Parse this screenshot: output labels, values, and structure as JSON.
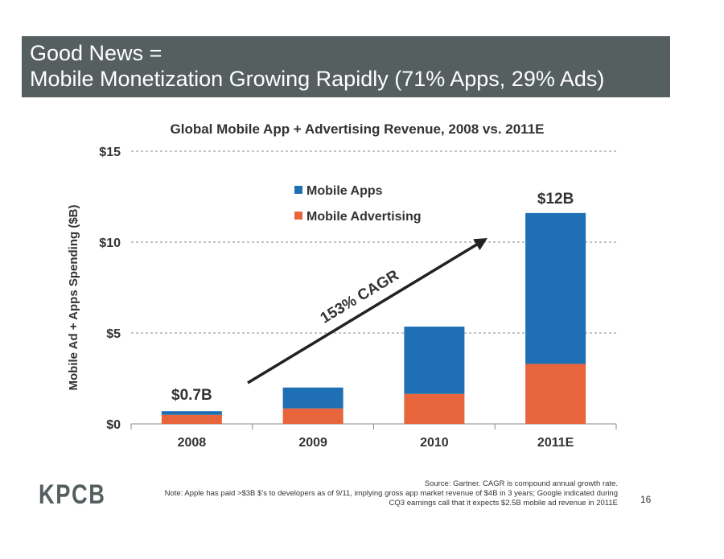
{
  "header": {
    "line1": "Good News =",
    "line2": "Mobile Monetization Growing Rapidly (71% Apps, 29% Ads)"
  },
  "chart_data": {
    "type": "bar",
    "stacked": true,
    "title": "Global Mobile App + Advertising Revenue, 2008 vs. 2011E",
    "xlabel": "",
    "ylabel": "Mobile Ad + Apps Spending ($B)",
    "categories": [
      "2008",
      "2009",
      "2010",
      "2011E"
    ],
    "series": [
      {
        "name": "Mobile Advertising",
        "values": [
          0.5,
          0.85,
          1.65,
          3.3
        ],
        "color": "#e8643a"
      },
      {
        "name": "Mobile Apps",
        "values": [
          0.2,
          1.15,
          3.7,
          8.3
        ],
        "color": "#1f6fb5"
      }
    ],
    "ylim": [
      0,
      15
    ],
    "yticks": [
      0,
      5,
      10,
      15
    ],
    "ytick_labels": [
      "$0",
      "$5",
      "$10",
      "$15"
    ],
    "grid": true,
    "legend_position": "top-center",
    "annotations": [
      {
        "text": "$0.7B",
        "category": "2008"
      },
      {
        "text": "$12B",
        "category": "2011E"
      },
      {
        "text": "153% CAGR",
        "type": "growth-arrow"
      }
    ]
  },
  "footer": {
    "logo": "KPCB",
    "source_line1": "Source: Gartner. CAGR is compound annual growth rate.",
    "source_line2": "Note: Apple has paid >$3B $’s to developers as of 9/11, implying gross app market revenue of $4B in 3 years; Google indicated during",
    "source_line3": "CQ3 earnings call that it expects $2.5B mobile ad revenue in 2011E",
    "page_number": "16"
  }
}
